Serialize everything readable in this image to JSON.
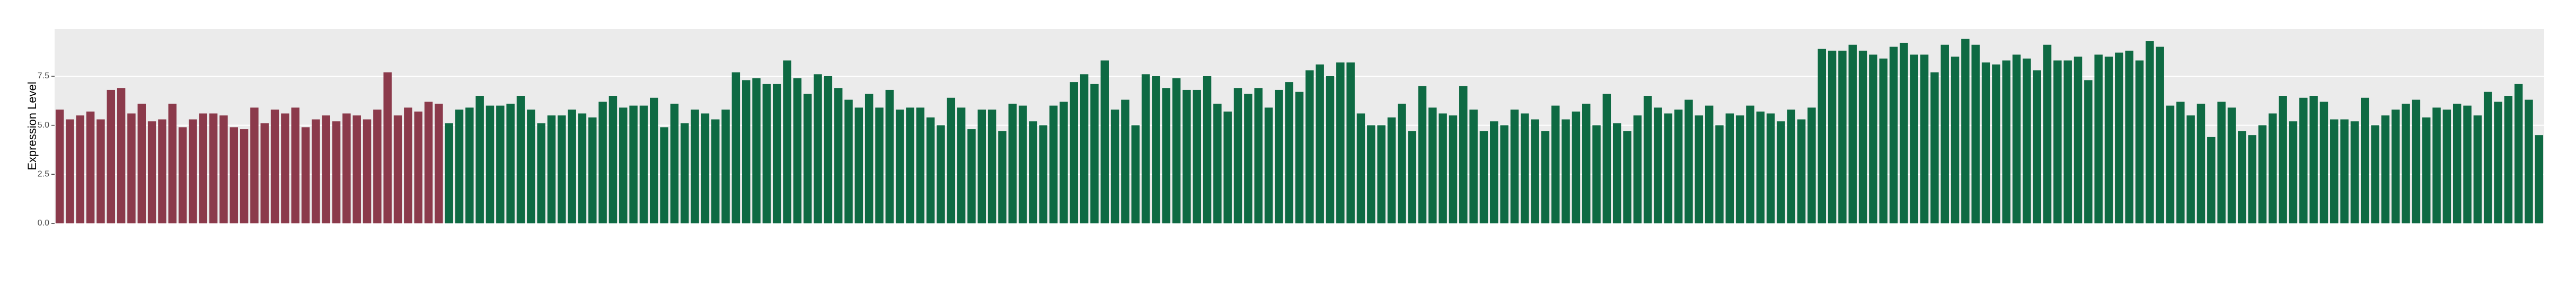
{
  "chart_data": {
    "type": "bar",
    "y_label": "Expression Level",
    "ylim": [
      0,
      9.9
    ],
    "yticks": [
      {
        "value": 0,
        "label": "0.0"
      },
      2.5,
      {
        "value": 5,
        "label": "5.0"
      },
      7.5
    ],
    "grid": true,
    "series": [
      {
        "color": "#8b3a4b",
        "values": [
          5.8,
          5.3,
          5.5,
          5.7,
          5.3,
          6.8,
          6.9,
          5.6,
          6.1,
          5.2,
          5.3,
          6.1,
          4.9,
          5.3,
          5.6,
          5.6,
          5.5,
          4.9,
          4.8,
          5.9,
          5.1,
          5.8,
          5.6,
          5.9,
          4.9,
          5.3,
          5.5,
          5.2,
          5.6,
          5.5,
          5.3,
          5.8,
          7.7,
          5.5,
          5.9,
          5.7,
          6.2,
          6.1,
          null,
          null,
          null,
          null,
          null,
          null,
          null,
          null,
          null,
          null,
          null,
          null,
          null,
          null,
          null,
          null,
          null,
          null,
          null,
          null,
          null,
          null,
          null,
          null,
          null,
          null,
          null,
          null,
          null,
          null,
          null,
          null,
          null,
          null,
          null,
          null,
          null,
          null,
          null,
          null,
          null,
          null,
          null,
          null,
          null,
          null,
          null,
          null,
          null,
          null,
          null,
          null,
          null,
          null,
          null,
          null,
          null,
          null,
          null,
          null,
          null,
          null,
          null,
          null,
          null,
          null,
          null,
          null,
          null,
          null,
          null,
          null,
          null,
          null,
          null,
          null,
          null,
          null,
          null,
          null,
          null,
          null,
          null,
          null,
          null,
          null,
          null,
          null,
          null,
          null,
          null,
          null,
          null,
          null,
          null,
          null,
          null,
          null,
          null,
          null,
          null,
          null,
          null,
          null,
          null,
          null,
          null,
          null,
          null,
          null,
          null,
          null,
          null,
          null,
          null,
          null,
          null,
          null,
          null,
          null,
          null,
          null,
          null,
          null,
          null,
          null,
          null,
          null,
          null,
          null,
          null,
          null,
          null,
          null,
          null,
          null,
          null,
          null,
          null,
          null,
          null,
          null,
          null,
          null,
          null,
          null,
          null,
          null,
          null,
          null,
          null,
          null,
          null,
          null,
          null,
          null,
          null,
          null,
          null,
          null,
          null,
          null,
          null,
          null,
          null,
          null,
          null,
          null,
          null,
          null,
          null,
          null,
          null,
          null,
          null,
          null,
          null,
          null,
          null,
          null,
          null,
          null,
          null,
          null,
          null,
          null,
          null,
          null,
          null,
          null,
          null,
          null,
          null,
          null,
          null,
          null,
          null,
          null,
          null,
          null,
          null,
          null,
          null,
          null,
          null
        ]
      },
      {
        "color": "#0e6a43",
        "values": [
          null,
          null,
          null,
          null,
          null,
          null,
          null,
          null,
          null,
          null,
          null,
          null,
          null,
          null,
          null,
          null,
          null,
          null,
          null,
          null,
          null,
          null,
          null,
          null,
          null,
          null,
          null,
          null,
          null,
          null,
          null,
          null,
          null,
          null,
          null,
          null,
          null,
          null,
          5.1,
          5.8,
          5.9,
          6.5,
          6.0,
          6.0,
          6.1,
          6.5,
          5.8,
          5.1,
          5.5,
          5.5,
          5.8,
          5.6,
          5.4,
          6.2,
          6.5,
          5.9,
          6.0,
          6.0,
          6.4,
          4.9,
          6.1,
          5.1,
          5.8,
          5.6,
          5.3,
          5.8,
          7.7,
          7.3,
          7.4,
          7.1,
          7.1,
          8.3,
          7.4,
          6.6,
          7.6,
          7.5,
          6.9,
          6.3,
          5.9,
          6.6,
          5.9,
          6.8,
          5.8,
          5.9,
          5.9,
          5.4,
          5.0,
          6.4,
          5.9,
          4.8,
          5.8,
          5.8,
          4.7,
          6.1,
          6.0,
          5.2,
          5.0,
          6.0,
          6.2,
          7.2,
          7.6,
          7.1,
          8.3,
          5.8,
          6.3,
          5.0,
          7.6,
          7.5,
          6.9,
          7.4,
          6.8,
          6.8,
          7.5,
          6.1,
          5.7,
          6.9,
          6.6,
          6.9,
          5.9,
          6.8,
          7.2,
          6.7,
          7.8,
          8.1,
          7.5,
          8.2,
          8.2,
          5.6,
          5.0,
          5.0,
          5.4,
          6.1,
          4.7,
          7.0,
          5.9,
          5.6,
          5.5,
          7.0,
          5.8,
          4.7,
          5.2,
          5.0,
          5.8,
          5.6,
          5.3,
          4.7,
          6.0,
          5.3,
          5.7,
          6.1,
          5.0,
          6.6,
          5.1,
          4.7,
          5.5,
          6.5,
          5.9,
          5.6,
          5.8,
          6.3,
          5.5,
          6.0,
          5.0,
          5.6,
          5.5,
          6.0,
          5.7,
          5.6,
          5.2,
          5.8,
          5.3,
          5.9,
          8.9,
          8.8,
          8.8,
          9.1,
          8.8,
          8.6,
          8.4,
          9.0,
          9.2,
          8.6,
          8.6,
          7.7,
          9.1,
          8.5,
          9.4,
          9.1,
          8.2,
          8.1,
          8.3,
          8.6,
          8.4,
          7.8,
          9.1,
          8.3,
          8.3,
          8.5,
          7.3,
          8.6,
          8.5,
          8.7,
          8.8,
          8.3,
          9.3,
          9.0,
          6.0,
          6.2,
          5.5,
          6.1,
          4.4,
          6.2,
          5.9,
          4.7,
          4.5,
          5.0,
          5.6,
          6.5,
          5.2,
          6.4,
          6.5,
          6.2,
          5.3,
          5.3,
          5.2,
          6.4,
          5.0,
          5.5,
          5.8,
          6.1,
          6.3,
          5.4,
          5.9,
          5.8,
          6.1,
          6.0,
          5.5,
          6.7,
          6.2,
          6.5,
          7.1,
          6.3,
          4.5
        ]
      }
    ]
  }
}
